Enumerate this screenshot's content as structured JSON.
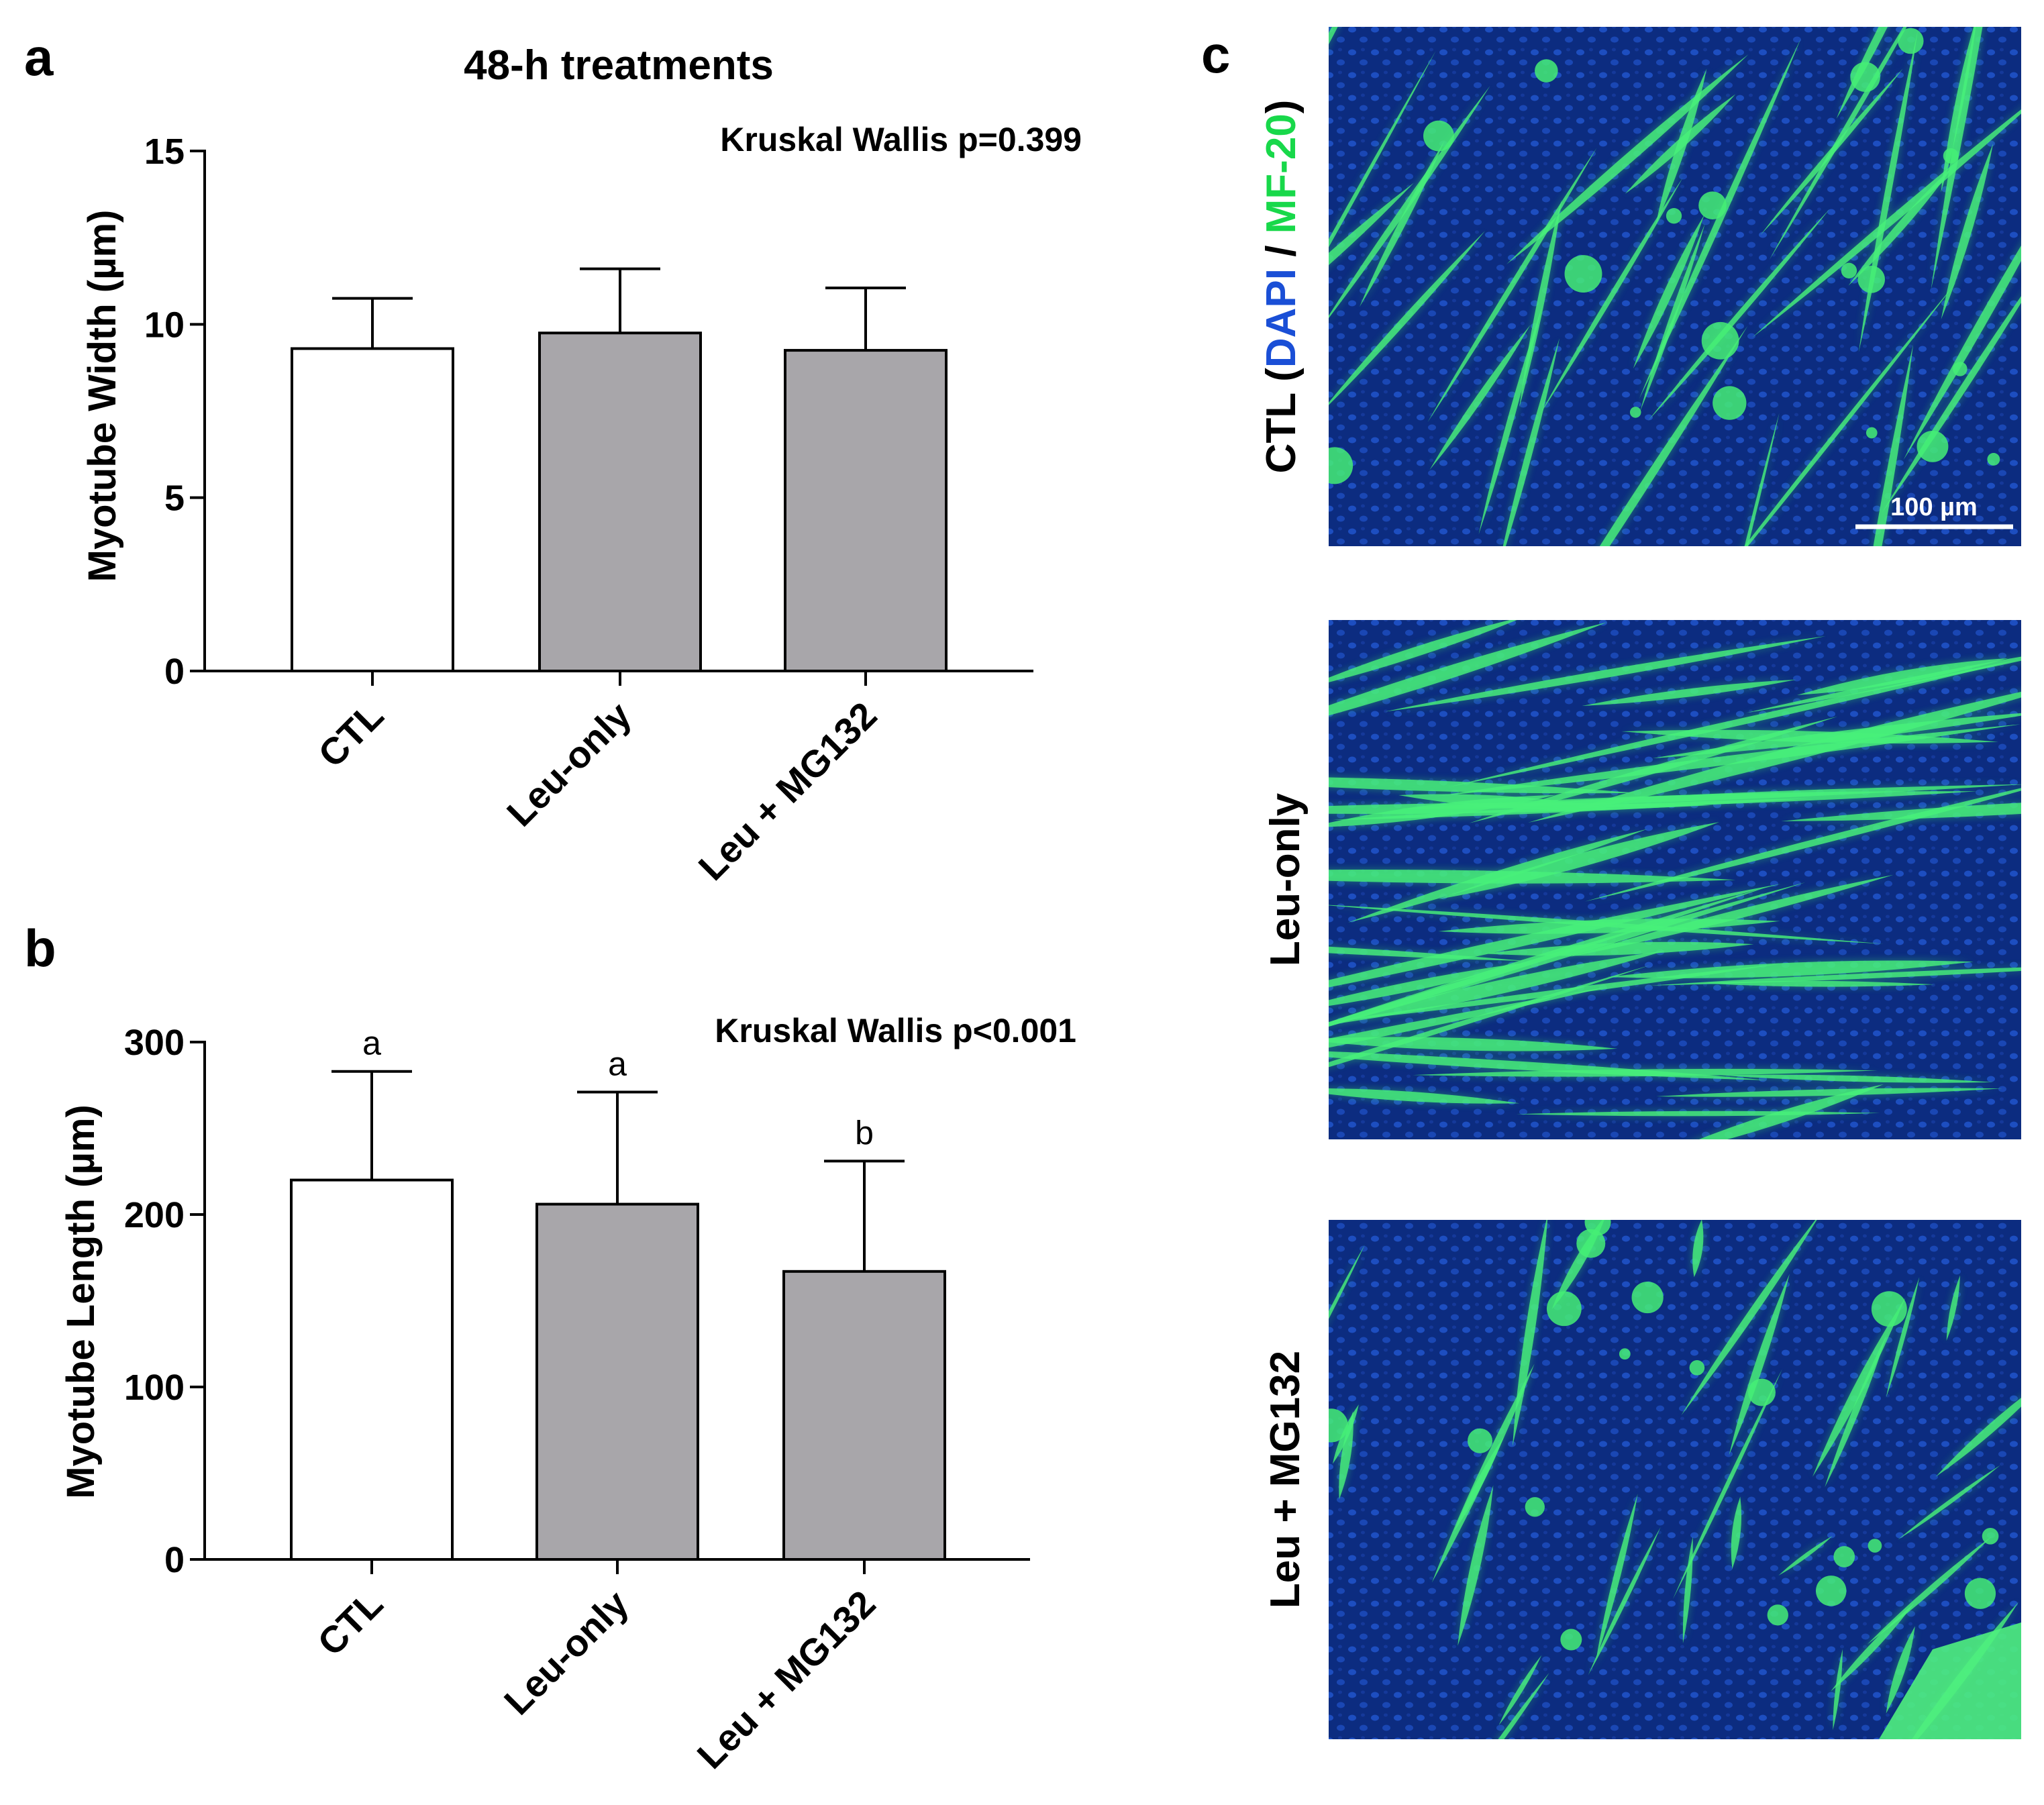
{
  "panel_a": {
    "letter": "a",
    "title": "48-h treatments",
    "stat": "Kruskal Wallis p=0.399"
  },
  "panel_b": {
    "letter": "b",
    "stat": "Kruskal Wallis p<0.001"
  },
  "panel_c": {
    "letter": "c",
    "rows": [
      {
        "label_parts": [
          "CTL (",
          "DAPI",
          " / ",
          "MF-20",
          ")"
        ],
        "label_colors": [
          "#000000",
          "#1a4fd6",
          "#000000",
          "#18d84a",
          "#000000"
        ],
        "scale_bar": "100 µm"
      },
      {
        "label_parts": [
          "Leu-only"
        ],
        "label_colors": [
          "#000000"
        ]
      },
      {
        "label_parts": [
          "Leu + MG132"
        ],
        "label_colors": [
          "#000000"
        ]
      }
    ]
  },
  "colors": {
    "control_bar": "#ffffff",
    "treatment_bar": "#a8a6aa",
    "axis": "#000000",
    "micro_bg": "#0b2a78",
    "micro_cell": "#3de86a"
  },
  "chart_data": [
    {
      "type": "bar",
      "categories": [
        "CTL",
        "Leu-only",
        "Leu + MG132"
      ],
      "values": [
        9.3,
        9.75,
        9.25
      ],
      "errors": [
        1.45,
        1.85,
        1.8
      ],
      "ylabel": "Myotube Width (µm)",
      "ylim": [
        0,
        15
      ],
      "yticks": [
        0,
        5,
        10,
        15
      ],
      "significance": [
        "",
        "",
        ""
      ]
    },
    {
      "type": "bar",
      "categories": [
        "CTL",
        "Leu-only",
        "Leu + MG132"
      ],
      "values": [
        220,
        206,
        167
      ],
      "errors": [
        63,
        65,
        64
      ],
      "ylabel": "Myotube Length (µm)",
      "ylim": [
        0,
        300
      ],
      "yticks": [
        0,
        100,
        200,
        300
      ],
      "significance": [
        "a",
        "a",
        "b"
      ]
    }
  ]
}
